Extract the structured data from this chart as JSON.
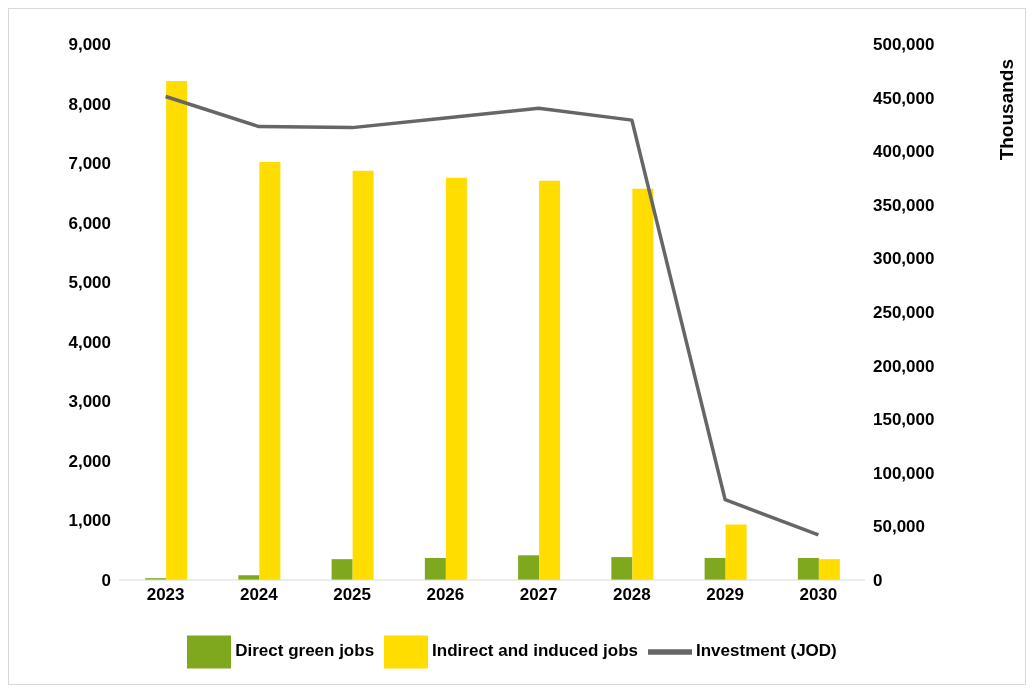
{
  "chart_data": {
    "type": "bar",
    "categories": [
      "2023",
      "2024",
      "2025",
      "2026",
      "2027",
      "2028",
      "2029",
      "2030"
    ],
    "series": [
      {
        "name": "Direct green jobs",
        "color": "#7fa81e",
        "values": [
          30,
          80,
          350,
          370,
          415,
          385,
          370,
          370
        ]
      },
      {
        "name": "Indirect and induced jobs",
        "color": "#ffdd00",
        "values": [
          8380,
          7020,
          6870,
          6755,
          6705,
          6570,
          930,
          350
        ]
      },
      {
        "name": "Investment (JOD)",
        "type": "line",
        "axis": "y2",
        "color": "#666666",
        "values": [
          451000,
          423000,
          422000,
          431000,
          440000,
          429000,
          75000,
          42000
        ]
      }
    ],
    "ylim": [
      0,
      9000
    ],
    "yticks": [
      {
        "value": 0,
        "label": "0"
      },
      {
        "value": 1000,
        "label": "1,000"
      },
      {
        "value": 2000,
        "label": "2,000"
      },
      {
        "value": 3000,
        "label": "3,000"
      },
      {
        "value": 4000,
        "label": "4,000"
      },
      {
        "value": 5000,
        "label": "5,000"
      },
      {
        "value": 6000,
        "label": "6,000"
      },
      {
        "value": 7000,
        "label": "7,000"
      },
      {
        "value": 8000,
        "label": "8,000"
      },
      {
        "value": 9000,
        "label": "9,000"
      }
    ],
    "y2lim": [
      0,
      500000
    ],
    "y2ticks": [
      {
        "value": 0,
        "label": "0"
      },
      {
        "value": 50000,
        "label": "50,000"
      },
      {
        "value": 100000,
        "label": "100,000"
      },
      {
        "value": 150000,
        "label": "150,000"
      },
      {
        "value": 200000,
        "label": "200,000"
      },
      {
        "value": 250000,
        "label": "250,000"
      },
      {
        "value": 300000,
        "label": "300,000"
      },
      {
        "value": 350000,
        "label": "350,000"
      },
      {
        "value": 400000,
        "label": "400,000"
      },
      {
        "value": 450000,
        "label": "450,000"
      },
      {
        "value": 500000,
        "label": "500,000"
      }
    ],
    "y2label": "Thousands",
    "grid": false,
    "legend": "bottom",
    "marker": "none",
    "line_style": "solid"
  }
}
